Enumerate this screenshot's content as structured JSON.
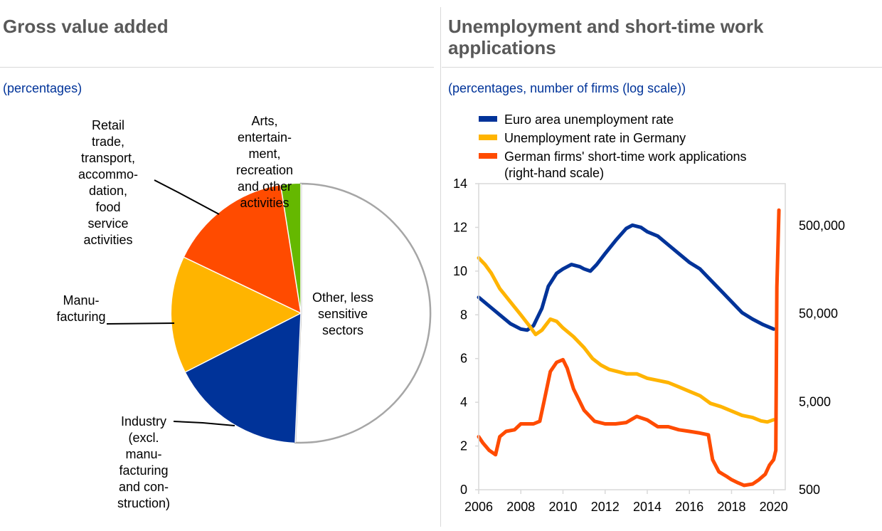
{
  "colors": {
    "title": "#595959",
    "subtitle": "#003399",
    "euro_area": "#003399",
    "germany": "#FFB400",
    "short_time": "#FF4B00",
    "pie_other": "#FFFFFF",
    "pie_industry": "#003399",
    "pie_manufacturing": "#FFB400",
    "pie_retail": "#FF4B00",
    "pie_arts": "#65B800"
  },
  "left_panel": {
    "title": "Gross value added",
    "subtitle": "(percentages)"
  },
  "right_panel": {
    "title_line1": "Unemployment and short-time work",
    "title_line2": "applications",
    "subtitle": "(percentages, number of firms (log scale))"
  },
  "chart_data": [
    {
      "type": "pie",
      "title": "Gross value added",
      "units": "percentages",
      "slices": [
        {
          "key": "other",
          "label_lines": [
            "Other, less",
            "sensitive",
            "sectors"
          ],
          "value": 50.7
        },
        {
          "key": "industry",
          "label_lines": [
            "Industry",
            "(excl.",
            "manu-",
            "facturing",
            "and con-",
            "struction)"
          ],
          "value": 16.8
        },
        {
          "key": "manufacturing",
          "label_lines": [
            "Manu-",
            "facturing"
          ],
          "value": 14.6
        },
        {
          "key": "retail",
          "label_lines": [
            "Retail",
            "trade,",
            "transport,",
            "accommo-",
            "dation,",
            "food",
            "service",
            "activities"
          ],
          "value": 15.4
        },
        {
          "key": "arts",
          "label_lines": [
            "Arts,",
            "entertain-",
            "ment,",
            "recreation",
            "and other",
            "activities"
          ],
          "value": 2.5
        }
      ]
    },
    {
      "type": "line",
      "title": "Unemployment and short-time work applications",
      "x_ticks": [
        "2006",
        "2008",
        "2010",
        "2012",
        "2014",
        "2016",
        "2018",
        "2020"
      ],
      "xlim": [
        2006,
        2020.4
      ],
      "y_left": {
        "ticks": [
          "0",
          "2",
          "4",
          "6",
          "8",
          "10",
          "12",
          "14"
        ],
        "ylim": [
          0,
          14
        ],
        "label": "percentages"
      },
      "y_right": {
        "ticks": [
          "500",
          "5,000",
          "50,000",
          "500,000"
        ],
        "scale": "log",
        "ylim": [
          500,
          1500000
        ],
        "label": "number of firms (log scale)"
      },
      "series": [
        {
          "name": "Euro area unemployment rate",
          "axis": "left",
          "points": [
            [
              2006.0,
              8.8
            ],
            [
              2006.5,
              8.4
            ],
            [
              2007.0,
              8.0
            ],
            [
              2007.5,
              7.6
            ],
            [
              2008.0,
              7.35
            ],
            [
              2008.3,
              7.3
            ],
            [
              2008.6,
              7.5
            ],
            [
              2009.0,
              8.3
            ],
            [
              2009.3,
              9.3
            ],
            [
              2009.7,
              9.9
            ],
            [
              2010.0,
              10.1
            ],
            [
              2010.4,
              10.3
            ],
            [
              2010.8,
              10.2
            ],
            [
              2011.0,
              10.1
            ],
            [
              2011.3,
              10.0
            ],
            [
              2011.6,
              10.3
            ],
            [
              2012.0,
              10.8
            ],
            [
              2012.5,
              11.4
            ],
            [
              2013.0,
              11.95
            ],
            [
              2013.3,
              12.1
            ],
            [
              2013.7,
              12.0
            ],
            [
              2014.0,
              11.8
            ],
            [
              2014.5,
              11.6
            ],
            [
              2015.0,
              11.2
            ],
            [
              2015.5,
              10.8
            ],
            [
              2016.0,
              10.4
            ],
            [
              2016.5,
              10.1
            ],
            [
              2017.0,
              9.6
            ],
            [
              2017.5,
              9.1
            ],
            [
              2018.0,
              8.6
            ],
            [
              2018.5,
              8.1
            ],
            [
              2019.0,
              7.8
            ],
            [
              2019.5,
              7.55
            ],
            [
              2020.0,
              7.35
            ]
          ]
        },
        {
          "name": "Unemployment rate in Germany",
          "axis": "left",
          "points": [
            [
              2006.0,
              10.6
            ],
            [
              2006.3,
              10.3
            ],
            [
              2006.6,
              9.9
            ],
            [
              2007.0,
              9.2
            ],
            [
              2007.5,
              8.6
            ],
            [
              2008.0,
              8.0
            ],
            [
              2008.4,
              7.5
            ],
            [
              2008.7,
              7.1
            ],
            [
              2009.0,
              7.3
            ],
            [
              2009.4,
              7.8
            ],
            [
              2009.7,
              7.7
            ],
            [
              2010.0,
              7.4
            ],
            [
              2010.5,
              7.0
            ],
            [
              2011.0,
              6.5
            ],
            [
              2011.4,
              6.0
            ],
            [
              2011.8,
              5.7
            ],
            [
              2012.2,
              5.5
            ],
            [
              2012.6,
              5.4
            ],
            [
              2013.0,
              5.3
            ],
            [
              2013.5,
              5.3
            ],
            [
              2014.0,
              5.1
            ],
            [
              2014.5,
              5.0
            ],
            [
              2015.0,
              4.9
            ],
            [
              2015.5,
              4.7
            ],
            [
              2016.0,
              4.5
            ],
            [
              2016.5,
              4.3
            ],
            [
              2017.0,
              3.95
            ],
            [
              2017.5,
              3.8
            ],
            [
              2018.0,
              3.6
            ],
            [
              2018.5,
              3.4
            ],
            [
              2019.0,
              3.3
            ],
            [
              2019.4,
              3.15
            ],
            [
              2019.7,
              3.1
            ],
            [
              2020.0,
              3.2
            ]
          ]
        },
        {
          "name": "German firms' short-time work applications",
          "name_line2": "(right-hand scale)",
          "axis": "right",
          "points": [
            [
              2006.0,
              2000
            ],
            [
              2006.2,
              1700
            ],
            [
              2006.5,
              1400
            ],
            [
              2006.8,
              1250
            ],
            [
              2007.0,
              2000
            ],
            [
              2007.3,
              2300
            ],
            [
              2007.7,
              2400
            ],
            [
              2008.0,
              2800
            ],
            [
              2008.3,
              2800
            ],
            [
              2008.6,
              2800
            ],
            [
              2008.9,
              3000
            ],
            [
              2009.1,
              5000
            ],
            [
              2009.4,
              11000
            ],
            [
              2009.7,
              14000
            ],
            [
              2010.0,
              15000
            ],
            [
              2010.2,
              12000
            ],
            [
              2010.5,
              7000
            ],
            [
              2010.8,
              5000
            ],
            [
              2011.0,
              4000
            ],
            [
              2011.5,
              3000
            ],
            [
              2012.0,
              2800
            ],
            [
              2012.5,
              2800
            ],
            [
              2013.0,
              2900
            ],
            [
              2013.5,
              3400
            ],
            [
              2014.0,
              3100
            ],
            [
              2014.5,
              2600
            ],
            [
              2015.0,
              2600
            ],
            [
              2015.5,
              2400
            ],
            [
              2016.0,
              2300
            ],
            [
              2016.5,
              2200
            ],
            [
              2016.9,
              2100
            ],
            [
              2017.1,
              1100
            ],
            [
              2017.4,
              800
            ],
            [
              2017.8,
              700
            ],
            [
              2018.0,
              650
            ],
            [
              2018.3,
              600
            ],
            [
              2018.6,
              560
            ],
            [
              2019.0,
              580
            ],
            [
              2019.3,
              650
            ],
            [
              2019.6,
              750
            ],
            [
              2019.8,
              950
            ],
            [
              2020.0,
              1100
            ],
            [
              2020.1,
              1400
            ],
            [
              2020.15,
              100000
            ],
            [
              2020.25,
              750000
            ]
          ]
        }
      ]
    }
  ]
}
